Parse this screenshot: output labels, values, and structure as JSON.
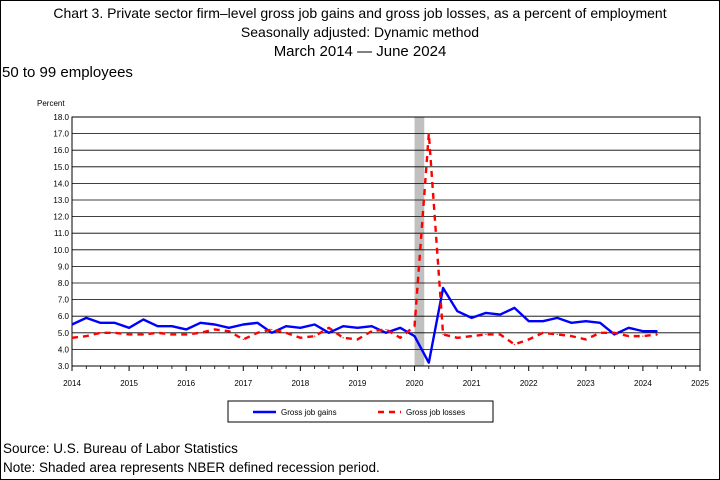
{
  "titles": {
    "line1": "Chart 3. Private sector firm–level gross job gains and gross job losses, as a percent of employment",
    "line2": "Seasonally adjusted: Dynamic method",
    "line3": "March 2014 — June 2024"
  },
  "subtitle": "50 to 99 employees",
  "footer": {
    "source": "Source: U.S. Bureau of Labor Statistics",
    "note": "Note: Shaded area represents NBER defined recession period."
  },
  "chart_data": {
    "type": "line",
    "ylabel": "Percent",
    "xlabel": "",
    "xlim": [
      2014,
      2025
    ],
    "ylim": [
      3.0,
      18.0
    ],
    "y_ticks": [
      "3.0",
      "4.0",
      "5.0",
      "6.0",
      "7.0",
      "8.0",
      "9.0",
      "10.0",
      "11.0",
      "12.0",
      "13.0",
      "14.0",
      "15.0",
      "16.0",
      "17.0",
      "18.0"
    ],
    "x_ticks": [
      "2014",
      "2015",
      "2016",
      "2017",
      "2018",
      "2019",
      "2020",
      "2021",
      "2022",
      "2023",
      "2024",
      "2025"
    ],
    "grid": "horizontal",
    "legend": "bottom",
    "recession": [
      2020.0,
      2020.17
    ],
    "colors": {
      "gains": "#0000ff",
      "losses": "#ff0000",
      "recession": "#c0c0c0"
    },
    "series": [
      {
        "name": "Gross job gains",
        "style": "solid",
        "x": [
          2014.0,
          2014.25,
          2014.5,
          2014.75,
          2015.0,
          2015.25,
          2015.5,
          2015.75,
          2016.0,
          2016.25,
          2016.5,
          2016.75,
          2017.0,
          2017.25,
          2017.5,
          2017.75,
          2018.0,
          2018.25,
          2018.5,
          2018.75,
          2019.0,
          2019.25,
          2019.5,
          2019.75,
          2020.0,
          2020.25,
          2020.5,
          2020.75,
          2021.0,
          2021.25,
          2021.5,
          2021.75,
          2022.0,
          2022.25,
          2022.5,
          2022.75,
          2023.0,
          2023.25,
          2023.5,
          2023.75,
          2024.0,
          2024.25
        ],
        "values": [
          5.5,
          5.9,
          5.6,
          5.6,
          5.3,
          5.8,
          5.4,
          5.4,
          5.2,
          5.6,
          5.5,
          5.3,
          5.5,
          5.6,
          5.0,
          5.4,
          5.3,
          5.5,
          5.0,
          5.4,
          5.3,
          5.4,
          5.0,
          5.3,
          4.8,
          3.2,
          7.7,
          6.3,
          5.9,
          6.2,
          6.1,
          6.5,
          5.7,
          5.7,
          5.9,
          5.6,
          5.7,
          5.6,
          4.9,
          5.3,
          5.1,
          5.1
        ]
      },
      {
        "name": "Gross job losses",
        "style": "dashed",
        "x": [
          2014.0,
          2014.25,
          2014.5,
          2014.75,
          2015.0,
          2015.25,
          2015.5,
          2015.75,
          2016.0,
          2016.25,
          2016.5,
          2016.75,
          2017.0,
          2017.25,
          2017.5,
          2017.75,
          2018.0,
          2018.25,
          2018.5,
          2018.75,
          2019.0,
          2019.25,
          2019.5,
          2019.75,
          2020.0,
          2020.25,
          2020.5,
          2020.75,
          2021.0,
          2021.25,
          2021.5,
          2021.75,
          2022.0,
          2022.25,
          2022.5,
          2022.75,
          2023.0,
          2023.25,
          2023.5,
          2023.75,
          2024.0,
          2024.25
        ],
        "values": [
          4.7,
          4.8,
          5.0,
          5.0,
          4.9,
          4.9,
          5.0,
          4.9,
          4.9,
          5.0,
          5.2,
          5.1,
          4.6,
          5.0,
          5.2,
          5.0,
          4.7,
          4.8,
          5.3,
          4.7,
          4.6,
          5.1,
          5.2,
          4.7,
          5.4,
          17.0,
          4.9,
          4.7,
          4.8,
          4.9,
          4.9,
          4.3,
          4.6,
          5.0,
          4.9,
          4.8,
          4.6,
          5.0,
          5.0,
          4.8,
          4.8,
          4.9
        ]
      }
    ]
  }
}
